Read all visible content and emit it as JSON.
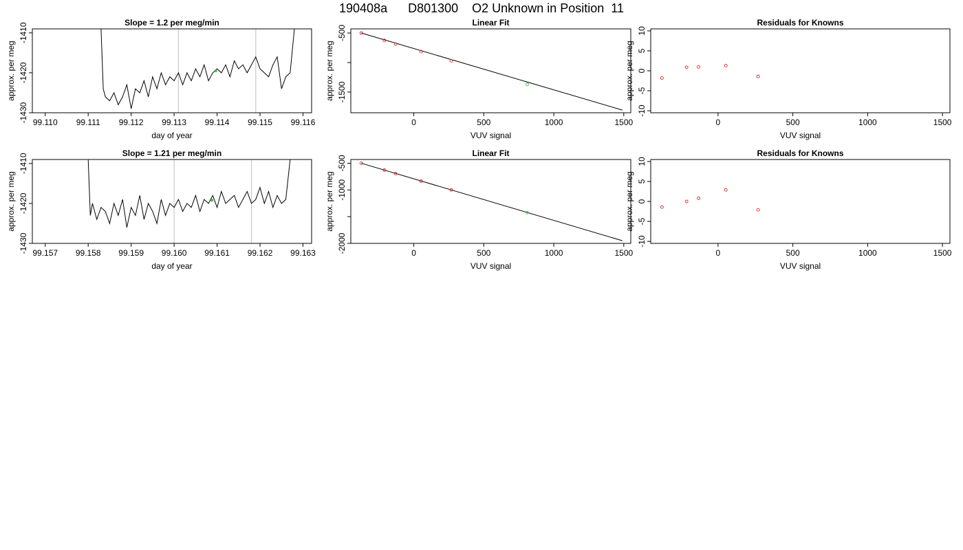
{
  "page_title": "190408a      D801300    O2 Unknown in Position  11",
  "colors": {
    "line": "#000000",
    "marker_known": "#d62728",
    "marker_unknown": "#33cc33",
    "guide": "#c8c8c8"
  },
  "chart_data": [
    {
      "type": "line",
      "title": "Slope =  1.2  per meg/min",
      "xlabel": "day of year",
      "ylabel": "approx. per meg",
      "xlim": [
        99.1097,
        99.1162
      ],
      "ylim": [
        -1430,
        -1409
      ],
      "xticks": [
        99.11,
        99.111,
        99.112,
        99.113,
        99.114,
        99.115,
        99.116
      ],
      "xtick_labels": [
        "99.110",
        "99.111",
        "99.112",
        "99.113",
        "99.114",
        "99.115",
        "99.116"
      ],
      "yticks": [
        -1430,
        -1420,
        -1410
      ],
      "ytick_labels": [
        "-1430",
        "-1420",
        "-1410"
      ],
      "vlines": [
        99.1131,
        99.1149
      ],
      "line_x": [
        99.1113,
        99.11135,
        99.1114,
        99.1115,
        99.1116,
        99.1117,
        99.1118,
        99.1119,
        99.112,
        99.1121,
        99.1122,
        99.1123,
        99.1124,
        99.1125,
        99.1126,
        99.1127,
        99.1128,
        99.1129,
        99.113,
        99.1131,
        99.1132,
        99.1133,
        99.1134,
        99.1135,
        99.1136,
        99.1137,
        99.1138,
        99.1139,
        99.114,
        99.1141,
        99.1142,
        99.1143,
        99.1144,
        99.1145,
        99.1146,
        99.1147,
        99.1148,
        99.1149,
        99.115,
        99.1151,
        99.1152,
        99.1153,
        99.1154,
        99.1155,
        99.1156,
        99.1157,
        99.1158
      ],
      "line_y": [
        -1409,
        -1424,
        -1426,
        -1427,
        -1425,
        -1428,
        -1426,
        -1423,
        -1429,
        -1424,
        -1425,
        -1422,
        -1426,
        -1421,
        -1424,
        -1420,
        -1423,
        -1421,
        -1422,
        -1420,
        -1423,
        -1420,
        -1422,
        -1419,
        -1421,
        -1418,
        -1422,
        -1420,
        -1419,
        -1420,
        -1418,
        -1421,
        -1417,
        -1419,
        -1418,
        -1420,
        -1418,
        -1416,
        -1419,
        -1420,
        -1421,
        -1418,
        -1416,
        -1424,
        -1421,
        -1420,
        -1409
      ],
      "highlight_points": [
        {
          "x": 99.11397,
          "y": -1419.5
        }
      ]
    },
    {
      "type": "scatter",
      "title": "Linear Fit",
      "xlabel": "VUV signal",
      "ylabel": "approx. per meg",
      "xlim": [
        -450,
        1550
      ],
      "ylim": [
        -1850,
        -430
      ],
      "xticks": [
        0,
        500,
        1000,
        1500
      ],
      "xtick_labels": [
        "0",
        "500",
        "1000",
        "1500"
      ],
      "yticks": [
        -1500,
        -1000,
        -500
      ],
      "ytick_labels": [
        "-1500",
        "",
        "-500"
      ],
      "fit_line": [
        [
          -375,
          -500
        ],
        [
          1490,
          -1805
        ]
      ],
      "known_points": [
        {
          "x": -375,
          "y": -500
        },
        {
          "x": -210,
          "y": -625
        },
        {
          "x": -130,
          "y": -688
        },
        {
          "x": 52,
          "y": -815
        },
        {
          "x": 268,
          "y": -970
        }
      ],
      "unknown_points": [
        {
          "x": 810,
          "y": -1370
        }
      ]
    },
    {
      "type": "scatter",
      "title": "Residuals for Knowns",
      "xlabel": "VUV signal",
      "ylabel": "approx. per meg",
      "xlim": [
        -450,
        1550
      ],
      "ylim": [
        -10.5,
        10.5
      ],
      "xticks": [
        0,
        500,
        1000,
        1500
      ],
      "xtick_labels": [
        "0",
        "500",
        "1000",
        "1500"
      ],
      "yticks": [
        -10,
        -5,
        0,
        5,
        10
      ],
      "ytick_labels": [
        "-10",
        "-5",
        "0",
        "5",
        "10"
      ],
      "known_points": [
        {
          "x": -375,
          "y": -1.8
        },
        {
          "x": -210,
          "y": 0.9
        },
        {
          "x": -130,
          "y": 1.0
        },
        {
          "x": 52,
          "y": 1.3
        },
        {
          "x": 268,
          "y": -1.4
        }
      ]
    },
    {
      "type": "line",
      "title": "Slope =  1.21  per meg/min",
      "xlabel": "day of year",
      "ylabel": "approx. per meg",
      "xlim": [
        99.1567,
        99.1632
      ],
      "ylim": [
        -1430,
        -1409
      ],
      "xticks": [
        99.157,
        99.158,
        99.159,
        99.16,
        99.161,
        99.162,
        99.163
      ],
      "xtick_labels": [
        "99.157",
        "99.158",
        "99.159",
        "99.160",
        "99.161",
        "99.162",
        "99.163"
      ],
      "yticks": [
        -1430,
        -1420,
        -1410
      ],
      "ytick_labels": [
        "-1430",
        "-1420",
        "-1410"
      ],
      "vlines": [
        99.16,
        99.1618
      ],
      "line_x": [
        99.158,
        99.15805,
        99.1581,
        99.1582,
        99.1583,
        99.1584,
        99.1585,
        99.1586,
        99.1587,
        99.1588,
        99.1589,
        99.159,
        99.1591,
        99.1592,
        99.1593,
        99.1594,
        99.1595,
        99.1596,
        99.1597,
        99.1598,
        99.1599,
        99.16,
        99.1601,
        99.1602,
        99.1603,
        99.1604,
        99.1605,
        99.1606,
        99.1607,
        99.1608,
        99.1609,
        99.161,
        99.1611,
        99.1612,
        99.1613,
        99.1614,
        99.1615,
        99.1616,
        99.1617,
        99.1618,
        99.1619,
        99.162,
        99.1621,
        99.1622,
        99.1623,
        99.1624,
        99.1625,
        99.1626,
        99.1627
      ],
      "line_y": [
        -1409,
        -1423,
        -1420,
        -1424,
        -1421,
        -1422,
        -1425,
        -1420,
        -1423,
        -1419,
        -1426,
        -1421,
        -1423,
        -1418,
        -1424,
        -1420,
        -1422,
        -1425,
        -1419,
        -1423,
        -1420,
        -1421,
        -1419,
        -1422,
        -1420,
        -1421,
        -1418,
        -1422,
        -1419,
        -1420,
        -1418,
        -1421,
        -1417,
        -1420,
        -1419,
        -1418,
        -1421,
        -1419,
        -1417,
        -1420,
        -1419,
        -1416,
        -1420,
        -1417,
        -1421,
        -1418,
        -1420,
        -1419,
        -1409
      ],
      "highlight_points": [
        {
          "x": 99.16088,
          "y": -1419.2
        }
      ]
    },
    {
      "type": "scatter",
      "title": "Linear Fit",
      "xlabel": "VUV signal",
      "ylabel": "approx. per meg",
      "xlim": [
        -450,
        1550
      ],
      "ylim": [
        -2000,
        -430
      ],
      "xticks": [
        0,
        500,
        1000,
        1500
      ],
      "xtick_labels": [
        "0",
        "500",
        "1000",
        "1500"
      ],
      "yticks": [
        -2000,
        -1500,
        -1000,
        -500
      ],
      "ytick_labels": [
        "-2000",
        "",
        "-1000",
        "-500"
      ],
      "fit_line": [
        [
          -375,
          -500
        ],
        [
          1490,
          -1950
        ]
      ],
      "known_points": [
        {
          "x": -375,
          "y": -500
        },
        {
          "x": -210,
          "y": -628
        },
        {
          "x": -130,
          "y": -693
        },
        {
          "x": 52,
          "y": -835
        },
        {
          "x": 268,
          "y": -1000
        }
      ],
      "unknown_points": [
        {
          "x": 810,
          "y": -1425
        }
      ]
    },
    {
      "type": "scatter",
      "title": "Residuals for Knowns",
      "xlabel": "VUV signal",
      "ylabel": "approx. per meg",
      "xlim": [
        -450,
        1550
      ],
      "ylim": [
        -10.5,
        10.5
      ],
      "xticks": [
        0,
        500,
        1000,
        1500
      ],
      "xtick_labels": [
        "0",
        "500",
        "1000",
        "1500"
      ],
      "yticks": [
        -10,
        -5,
        0,
        5,
        10
      ],
      "ytick_labels": [
        "-10",
        "-5",
        "0",
        "5",
        "10"
      ],
      "known_points": [
        {
          "x": -375,
          "y": -1.4
        },
        {
          "x": -210,
          "y": 0.0
        },
        {
          "x": -130,
          "y": 0.8
        },
        {
          "x": 52,
          "y": 2.9
        },
        {
          "x": 268,
          "y": -2.1
        }
      ]
    }
  ]
}
